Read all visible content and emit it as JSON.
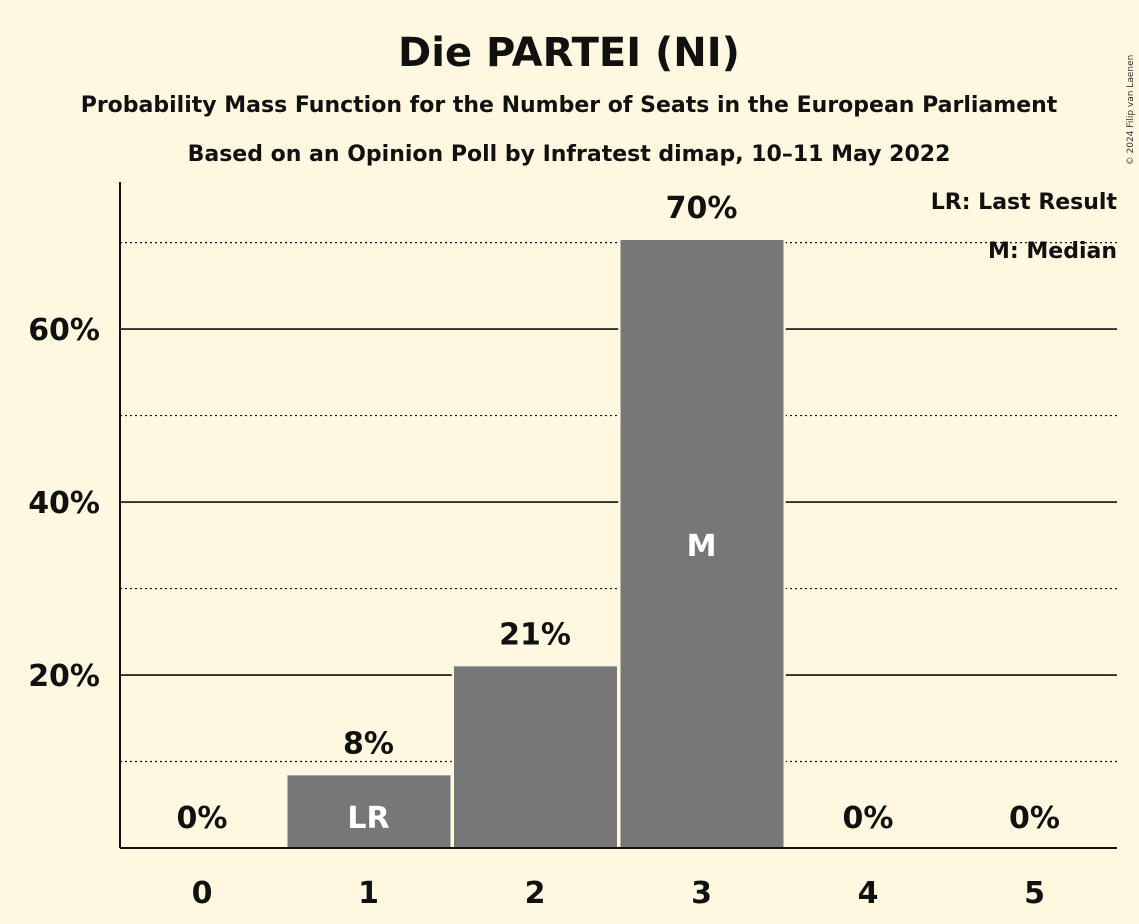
{
  "chart_data": {
    "type": "bar",
    "title": "Die PARTEI (NI)",
    "subtitle_1": "Probability Mass Function for the Number of Seats in the European Parliament",
    "subtitle_2": "Based on an Opinion Poll by Infratest dimap, 10–11 May 2022",
    "categories": [
      "0",
      "1",
      "2",
      "3",
      "4",
      "5"
    ],
    "values": [
      0,
      8.4,
      21,
      70.3,
      0,
      0
    ],
    "value_labels": [
      "0%",
      "8%",
      "21%",
      "70%",
      "0%",
      "0%"
    ],
    "bar_markers": [
      "",
      "LR",
      "",
      "M",
      "",
      ""
    ],
    "yticks": [
      {
        "value": 20,
        "label": "20%"
      },
      {
        "value": 40,
        "label": "40%"
      },
      {
        "value": 60,
        "label": "60%"
      }
    ],
    "minor_gridlines": [
      10,
      30,
      50,
      70
    ],
    "ylim": [
      0,
      70.3
    ],
    "legend": [
      "LR: Last Result",
      "M: Median"
    ],
    "legend_position": "top-right",
    "copyright": "© 2024 Filip van Laenen",
    "colors": {
      "background": "#fff8e1",
      "bar": "#777777",
      "text": "#111111",
      "marker_text": "#ffffff"
    }
  }
}
